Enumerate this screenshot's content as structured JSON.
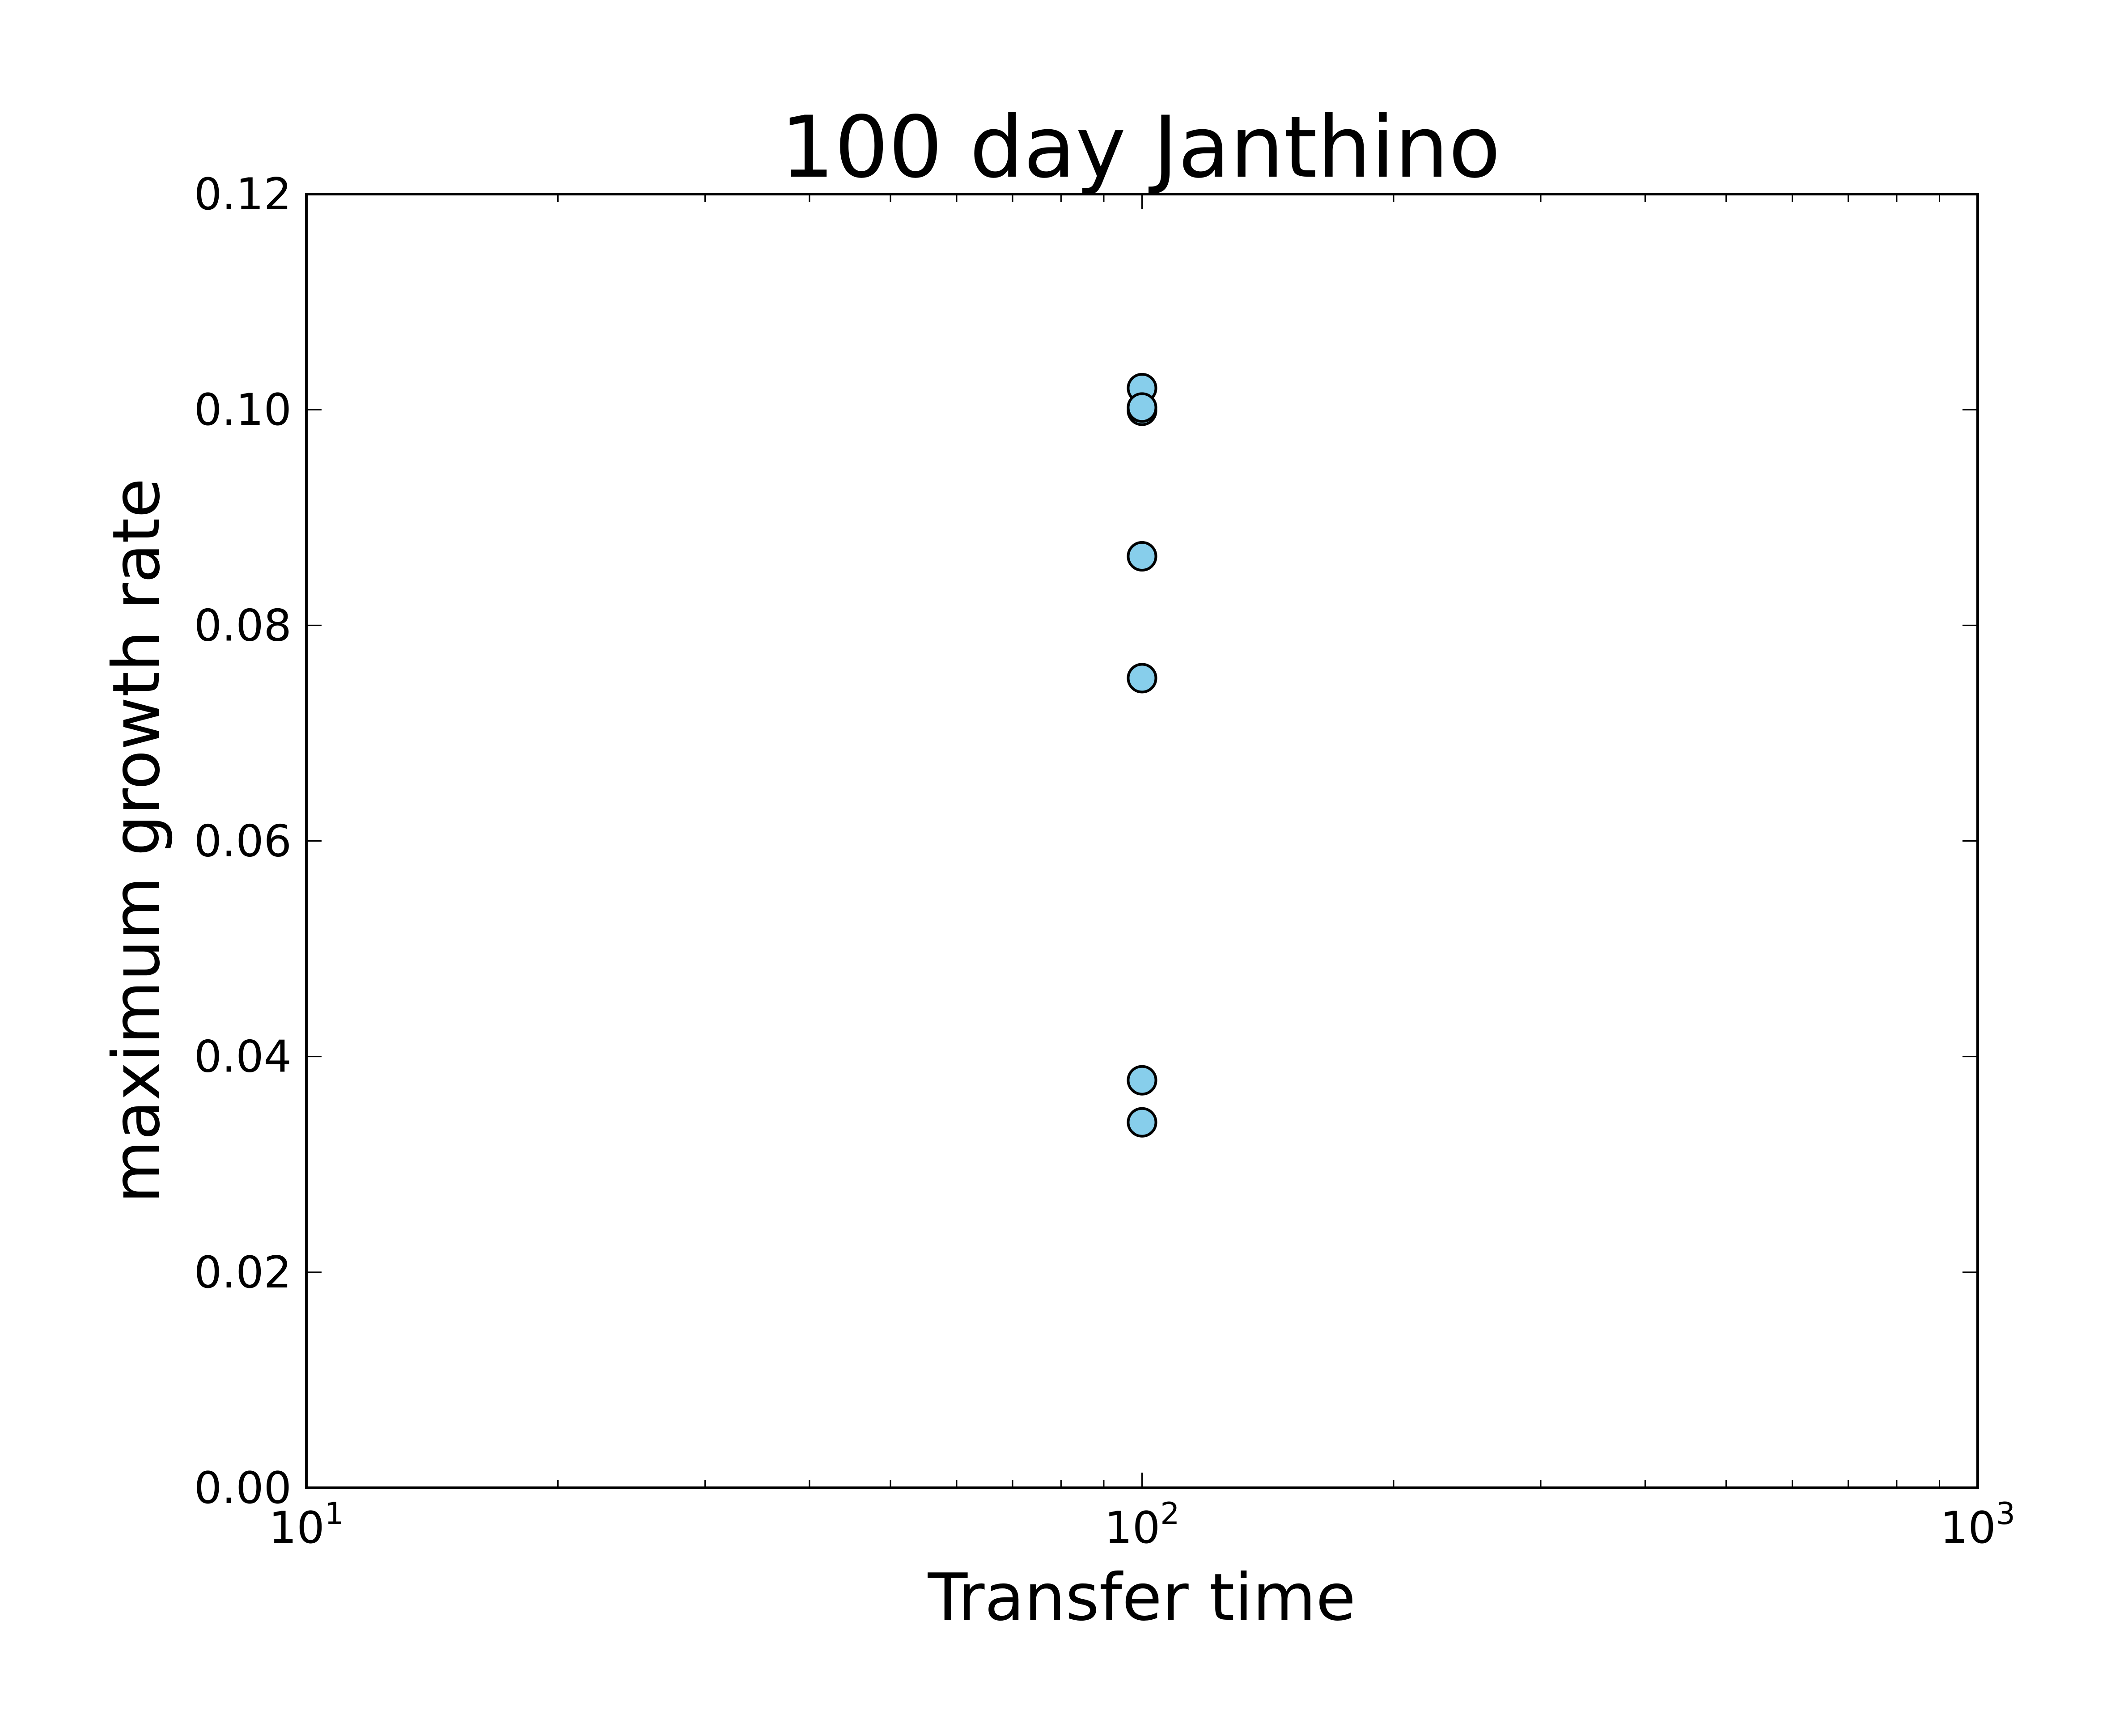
{
  "chart_data": {
    "type": "scatter",
    "title": "100 day Janthino",
    "xlabel": "Transfer time",
    "ylabel": "maximum growth rate",
    "xscale": "log",
    "xlim": [
      10,
      1000
    ],
    "ylim": [
      0.0,
      0.12
    ],
    "x_ticks": [
      {
        "value": 10,
        "base": "10",
        "exp": "1"
      },
      {
        "value": 100,
        "base": "10",
        "exp": "2"
      },
      {
        "value": 1000,
        "base": "10",
        "exp": "3"
      }
    ],
    "y_ticks": [
      {
        "value": 0.0,
        "label": "0.00"
      },
      {
        "value": 0.02,
        "label": "0.02"
      },
      {
        "value": 0.04,
        "label": "0.04"
      },
      {
        "value": 0.06,
        "label": "0.06"
      },
      {
        "value": 0.08,
        "label": "0.08"
      },
      {
        "value": 0.1,
        "label": "0.10"
      },
      {
        "value": 0.12,
        "label": "0.12"
      }
    ],
    "series": [
      {
        "color": "#87ceeb",
        "marker_edge_color": "#000000",
        "points": [
          {
            "x": 100,
            "y": 0.102
          },
          {
            "x": 100,
            "y": 0.0999
          },
          {
            "x": 100,
            "y": 0.1002
          },
          {
            "x": 100,
            "y": 0.0864
          },
          {
            "x": 100,
            "y": 0.0751
          },
          {
            "x": 100,
            "y": 0.0378
          },
          {
            "x": 100,
            "y": 0.0339
          }
        ]
      }
    ],
    "grid": false,
    "legend": "none"
  }
}
